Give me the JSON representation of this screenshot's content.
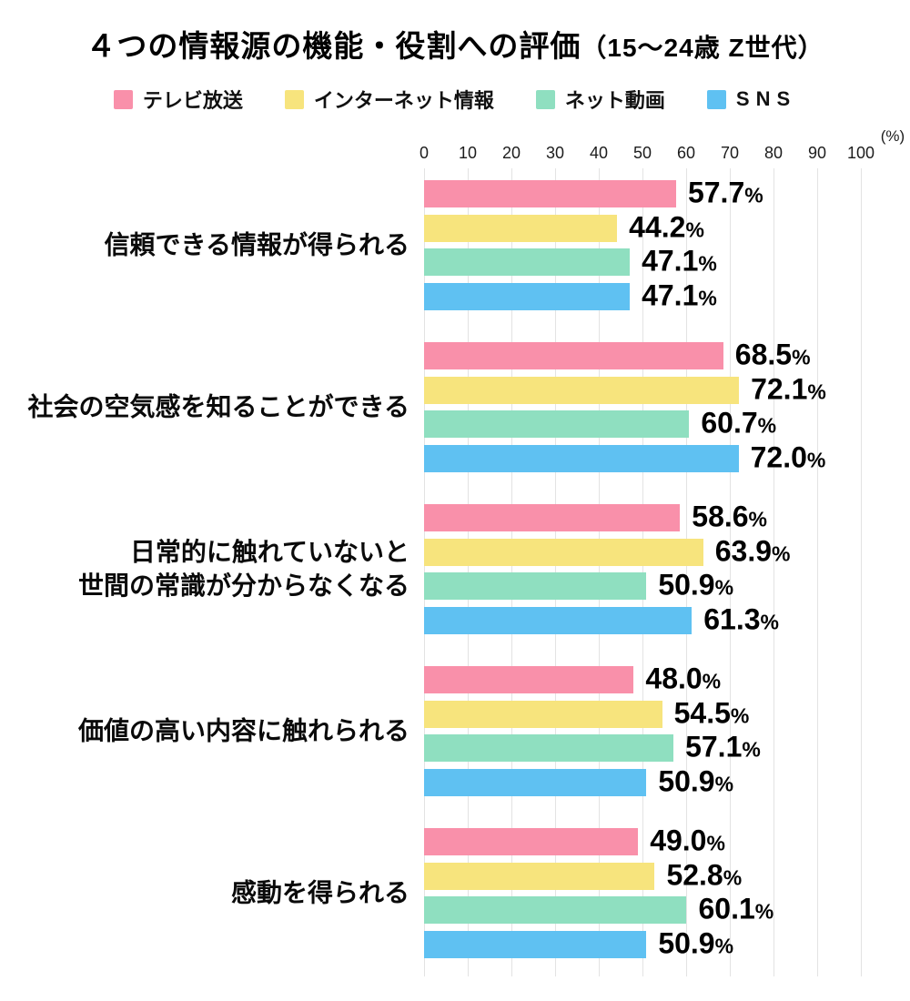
{
  "title": {
    "main": "４つの情報源の機能・役割への評価",
    "suffix": "（15～24歳 Z世代）"
  },
  "axis": {
    "unit_label": "(%)"
  },
  "chart_data": {
    "type": "bar",
    "orientation": "horizontal",
    "title": "４つの情報源の機能・役割への評価（15～24歳 Z世代）",
    "xlabel": "(%)",
    "ylabel": "",
    "xlim": [
      0,
      100
    ],
    "xticks": [
      0,
      10,
      20,
      30,
      40,
      50,
      60,
      70,
      80,
      90,
      100
    ],
    "grid": true,
    "legend_position": "top",
    "value_label_format": "{value}%",
    "categories": [
      "信頼できる情報が得られる",
      "社会の空気感を知ることができる",
      "日常的に触れていないと\n世間の常識が分からなくなる",
      "価値の高い内容に触れられる",
      "感動を得られる"
    ],
    "series": [
      {
        "name": "テレビ放送",
        "color": "#F990AA",
        "values": [
          57.7,
          68.5,
          58.6,
          48.0,
          49.0
        ]
      },
      {
        "name": "インターネット情報",
        "color": "#F7E47D",
        "values": [
          44.2,
          72.1,
          63.9,
          54.5,
          52.8
        ]
      },
      {
        "name": "ネット動画",
        "color": "#8FDFC0",
        "values": [
          47.1,
          60.7,
          50.9,
          57.1,
          60.1
        ]
      },
      {
        "name": "SNS",
        "color": "#5FC1F2",
        "values": [
          47.1,
          72.0,
          61.3,
          50.9,
          50.9
        ]
      }
    ]
  }
}
